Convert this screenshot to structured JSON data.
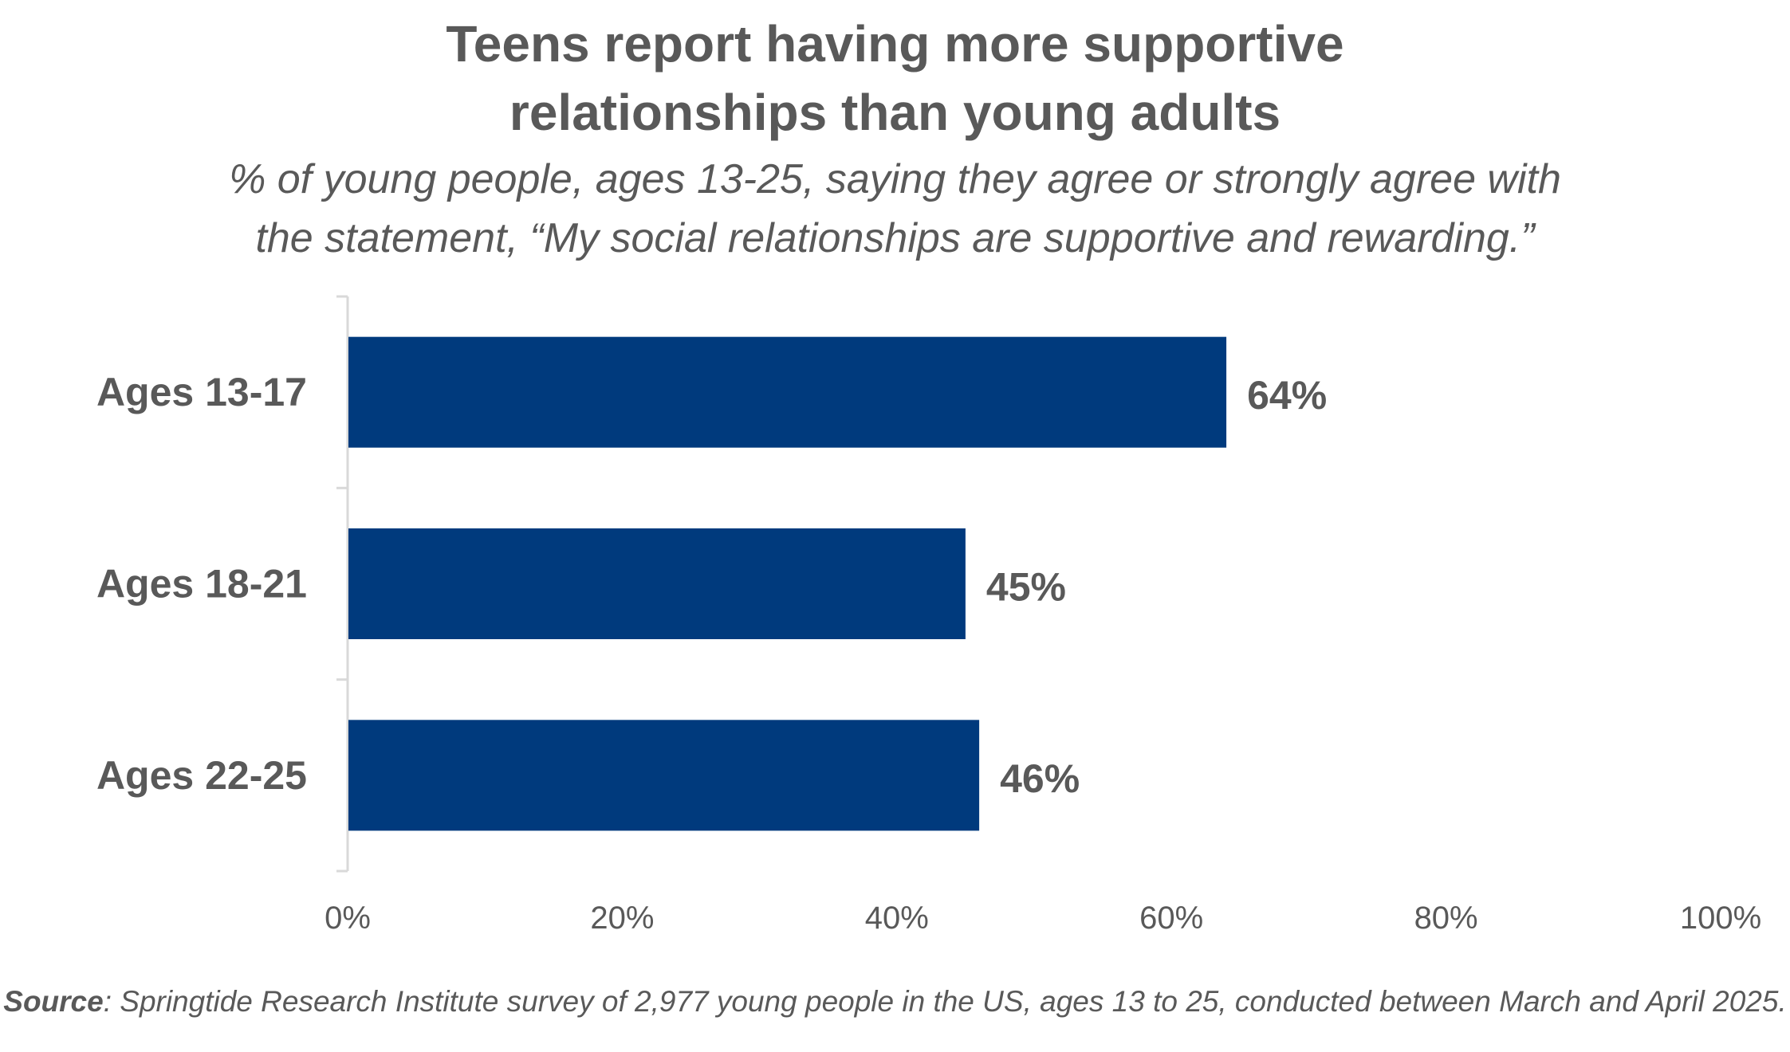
{
  "title_lines": [
    "Teens report having more supportive",
    "relationships than young adults"
  ],
  "subtitle_lines": [
    "% of young people, ages 13-25, saying they agree or strongly agree with",
    "the statement, “My social relationships are supportive and rewarding.”"
  ],
  "source": {
    "label": "Source",
    "text": ": Springtide Research Institute survey of 2,977 young people in the US, ages 13 to 25, conducted between March and April 2025."
  },
  "colors": {
    "bar": "#003A7D",
    "text": "#595959",
    "axis": "#d9d9d9"
  },
  "chart_data": {
    "type": "bar",
    "orientation": "horizontal",
    "title": "Teens report having more supportive relationships than young adults",
    "subtitle": "% of young people, ages 13-25, saying they agree or strongly agree with the statement, “My social relationships are supportive and rewarding.”",
    "categories": [
      "Ages 13-17",
      "Ages 18-21",
      "Ages 22-25"
    ],
    "values": [
      64,
      45,
      46
    ],
    "data_labels": [
      "64%",
      "45%",
      "46%"
    ],
    "xlim": [
      0,
      100
    ],
    "x_ticks": [
      0,
      20,
      40,
      60,
      80,
      100
    ],
    "x_tick_labels": [
      "0%",
      "20%",
      "40%",
      "60%",
      "80%",
      "100%"
    ],
    "xlabel": "",
    "ylabel": "",
    "grid": false,
    "legend": "none"
  }
}
